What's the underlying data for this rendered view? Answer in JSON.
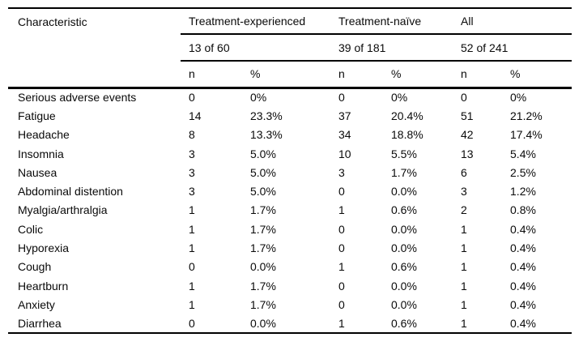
{
  "table": {
    "header": {
      "characteristic_label": "Characteristic",
      "groups": [
        {
          "label": "Treatment-experienced",
          "count": "13 of 60"
        },
        {
          "label": "Treatment-naïve",
          "count": "39 of 181"
        },
        {
          "label": "All",
          "count": "52 of 241"
        }
      ],
      "n_label": "n",
      "pct_label": "%"
    },
    "rows": [
      {
        "characteristic": "Serious adverse events",
        "values": [
          "0",
          "0%",
          "0",
          "0%",
          "0",
          "0%"
        ]
      },
      {
        "characteristic": "Fatigue",
        "values": [
          "14",
          "23.3%",
          "37",
          "20.4%",
          "51",
          "21.2%"
        ]
      },
      {
        "characteristic": "Headache",
        "values": [
          "8",
          "13.3%",
          "34",
          "18.8%",
          "42",
          "17.4%"
        ]
      },
      {
        "characteristic": "Insomnia",
        "values": [
          "3",
          "5.0%",
          "10",
          "5.5%",
          "13",
          "5.4%"
        ]
      },
      {
        "characteristic": "Nausea",
        "values": [
          "3",
          "5.0%",
          "3",
          "1.7%",
          "6",
          "2.5%"
        ]
      },
      {
        "characteristic": "Abdominal distention",
        "values": [
          "3",
          "5.0%",
          "0",
          "0.0%",
          "3",
          "1.2%"
        ]
      },
      {
        "characteristic": "Myalgia/arthralgia",
        "values": [
          "1",
          "1.7%",
          "1",
          "0.6%",
          "2",
          "0.8%"
        ]
      },
      {
        "characteristic": "Colic",
        "values": [
          "1",
          "1.7%",
          "0",
          "0.0%",
          "1",
          "0.4%"
        ]
      },
      {
        "characteristic": "Hyporexia",
        "values": [
          "1",
          "1.7%",
          "0",
          "0.0%",
          "1",
          "0.4%"
        ]
      },
      {
        "characteristic": "Cough",
        "values": [
          "0",
          "0.0%",
          "1",
          "0.6%",
          "1",
          "0.4%"
        ]
      },
      {
        "characteristic": "Heartburn",
        "values": [
          "1",
          "1.7%",
          "0",
          "0.0%",
          "1",
          "0.4%"
        ]
      },
      {
        "characteristic": "Anxiety",
        "values": [
          "1",
          "1.7%",
          "0",
          "0.0%",
          "1",
          "0.4%"
        ]
      },
      {
        "characteristic": "Diarrhea",
        "values": [
          "0",
          "0.0%",
          "1",
          "0.6%",
          "1",
          "0.4%"
        ]
      }
    ],
    "colors": {
      "border": "#000000",
      "text": "#0a0a0a",
      "background": "#ffffff"
    }
  }
}
